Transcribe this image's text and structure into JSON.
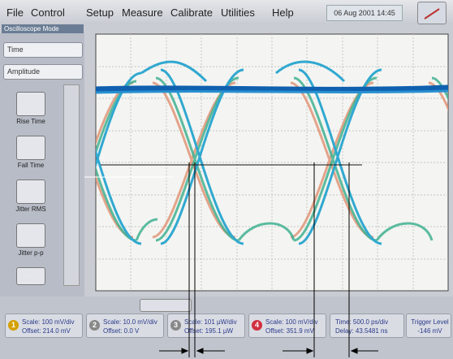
{
  "menu": [
    "File",
    "Control",
    "Setup",
    "Measure",
    "Calibrate",
    "Utilities",
    "Help"
  ],
  "date": "06 Aug 2001  14:45",
  "mode_label": "Oscilloscope Mode",
  "dropdowns": [
    "Time",
    "Amplitude"
  ],
  "measure_buttons": [
    "Rise Time",
    "Fall Time",
    "Jitter RMS",
    "Jitter p-p"
  ],
  "channels": [
    {
      "number": "1",
      "scale": "Scale: 100 mV/div",
      "offset": "Offset: 214.0 mV"
    },
    {
      "number": "2",
      "scale": "Scale: 10.0 mV/div",
      "offset": "Offset: 0.0 V"
    },
    {
      "number": "3",
      "scale": "Scale: 101 µW/div",
      "offset": "Offset: 195.1 µW"
    },
    {
      "number": "4",
      "scale": "Scale: 100 mV/div",
      "offset": "Offset: 351.9 mV"
    }
  ],
  "timebase": {
    "time": "Time: 500.0 ps/div",
    "delay": "Delay: 43.5481 ns"
  },
  "trigger": {
    "label": "Trigger Level",
    "value": "-146 mV"
  }
}
